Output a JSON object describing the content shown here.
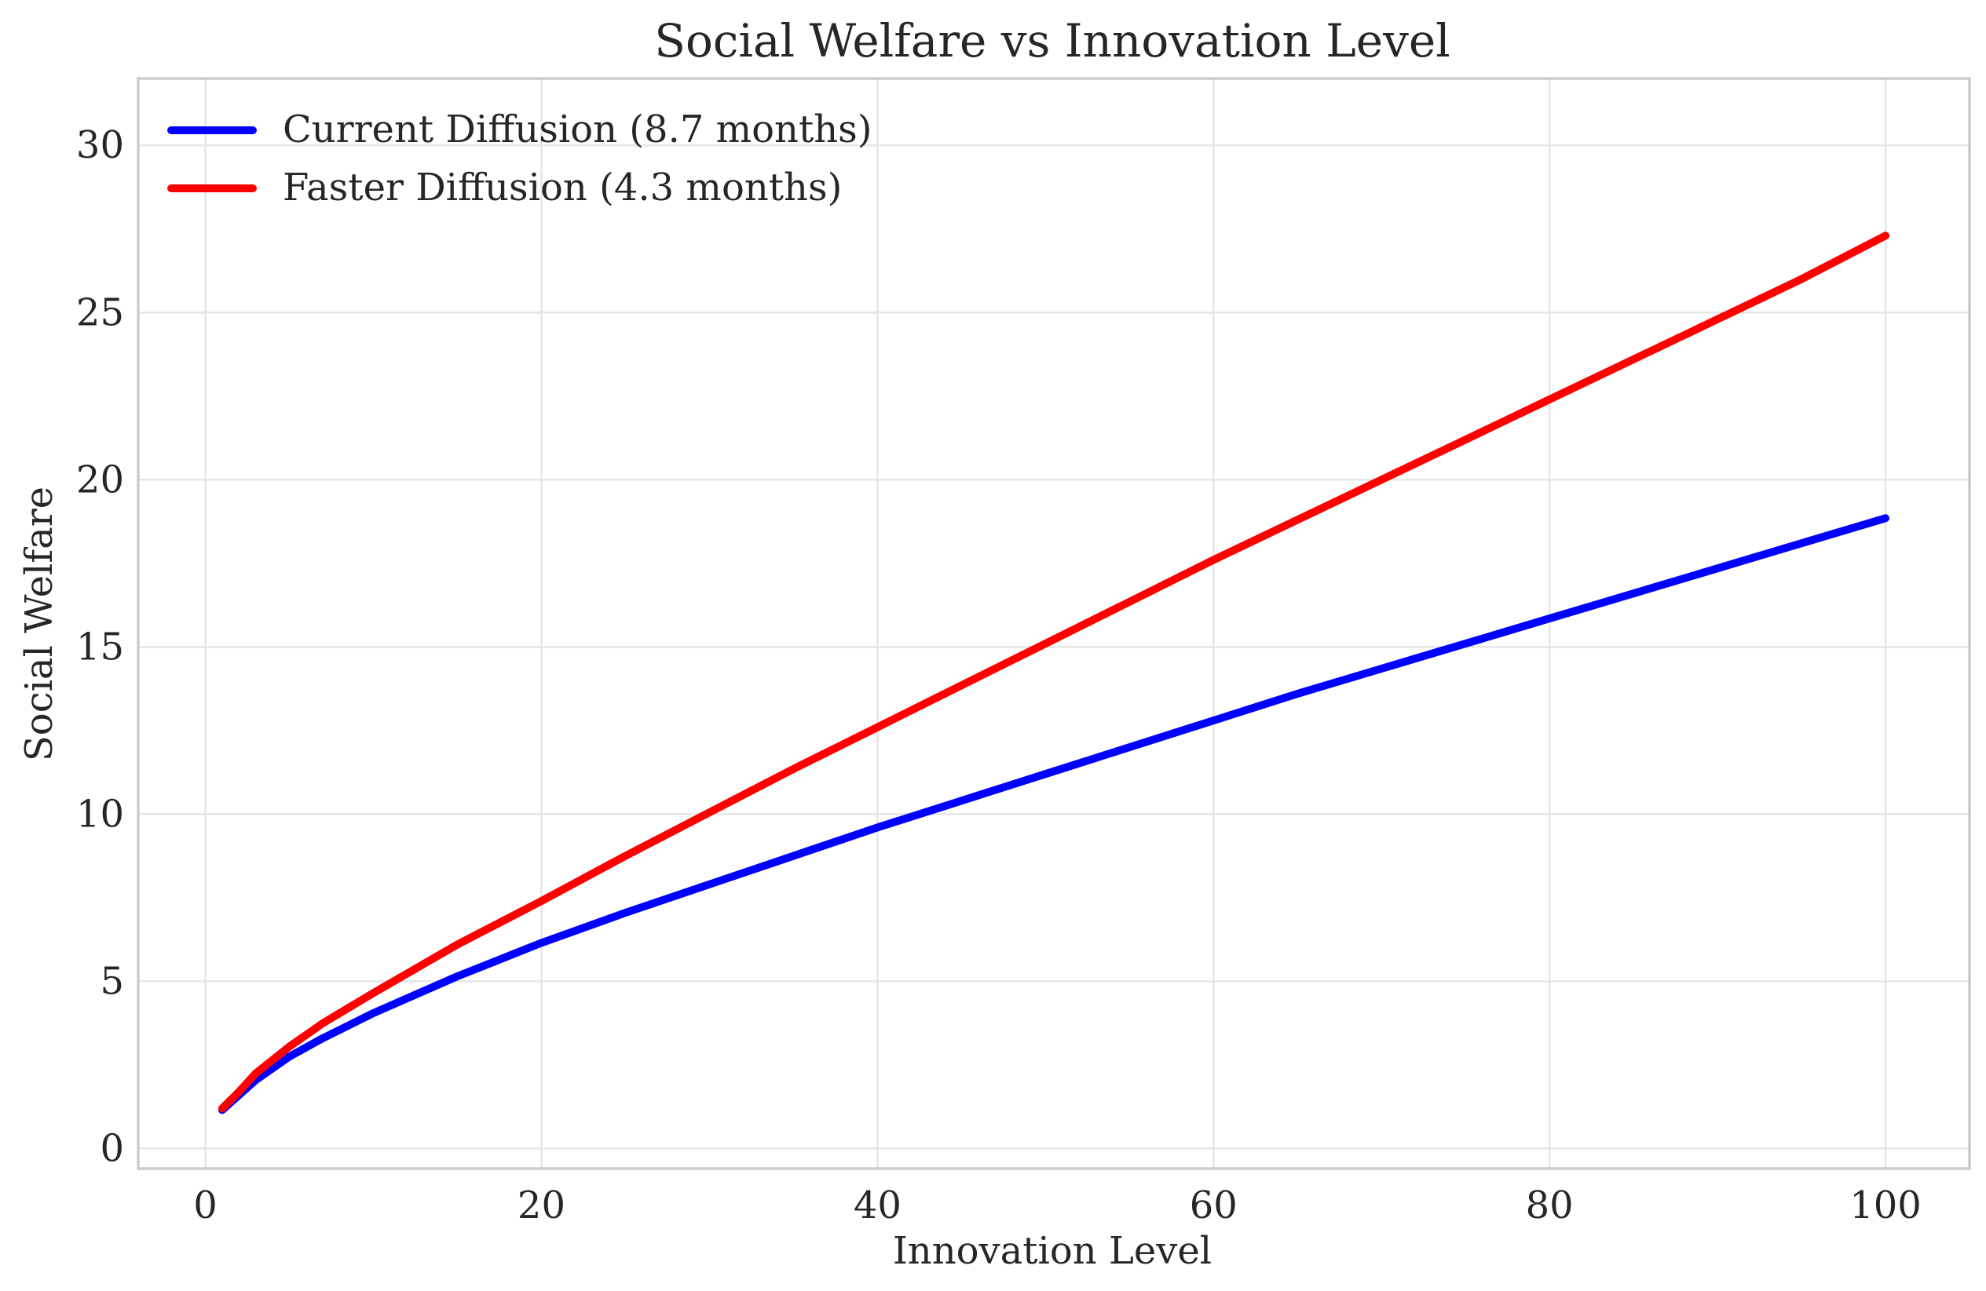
{
  "chart_data": {
    "type": "line",
    "title": "Social Welfare vs Innovation Level",
    "xlabel": "Innovation Level",
    "ylabel": "Social Welfare",
    "xlim": [
      -4,
      105
    ],
    "ylim": [
      -0.6,
      32
    ],
    "xticks": [
      0,
      20,
      40,
      60,
      80,
      100
    ],
    "yticks": [
      0,
      5,
      10,
      15,
      20,
      25,
      30
    ],
    "grid": true,
    "legend_position": "top-left",
    "x": [
      1,
      2,
      3,
      5,
      7,
      10,
      15,
      20,
      25,
      30,
      35,
      40,
      45,
      50,
      55,
      60,
      65,
      70,
      75,
      80,
      85,
      90,
      95,
      100
    ],
    "series": [
      {
        "name": "Current Diffusion (8.7 months)",
        "color": "#0000ff",
        "values": [
          1.15,
          1.6,
          2.05,
          2.75,
          3.3,
          4.05,
          5.15,
          6.15,
          7.05,
          7.9,
          8.75,
          9.6,
          10.4,
          11.2,
          12.0,
          12.8,
          13.6,
          14.35,
          15.1,
          15.85,
          16.6,
          17.35,
          18.1,
          18.85
        ]
      },
      {
        "name": "Faster Diffusion (4.3 months)",
        "color": "#ff0000",
        "values": [
          1.2,
          1.7,
          2.25,
          3.05,
          3.75,
          4.65,
          6.1,
          7.4,
          8.75,
          10.05,
          11.35,
          12.6,
          13.85,
          15.1,
          16.35,
          17.6,
          18.8,
          20.0,
          21.2,
          22.4,
          23.6,
          24.8,
          26.0,
          27.3
        ]
      }
    ]
  }
}
